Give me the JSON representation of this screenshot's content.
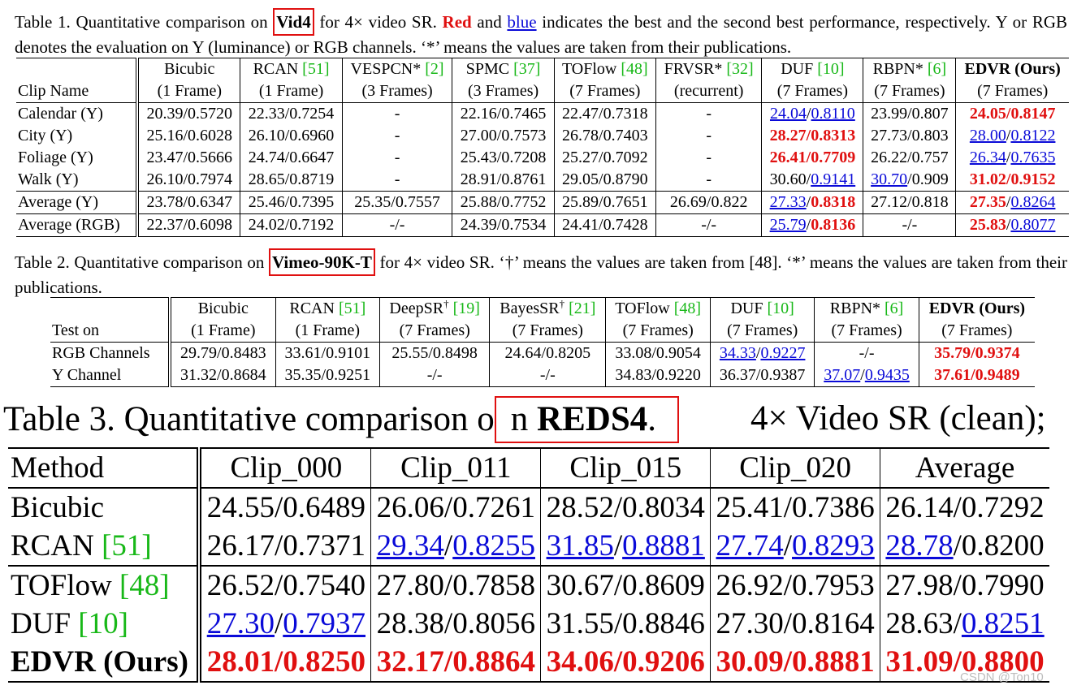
{
  "table1": {
    "caption": {
      "prefix": "Table 1. Quantitative comparison on ",
      "dataset": "Vid4",
      "mid1": " for 4× video SR. ",
      "red_word": "Red",
      "mid2": " and ",
      "blue_word": "blue",
      "rest": " indicates the best and the second best performance, respectively. Y or RGB denotes the evaluation on Y (luminance) or RGB channels. ‘*’ means the values are taken from their publications."
    },
    "header_row1": [
      "",
      "Bicubic",
      "RCAN [51]",
      "VESPCN* [2]",
      "SPMC [37]",
      "TOFlow [48]",
      "FRVSR* [32]",
      "DUF [10]",
      "RBPN* [6]",
      "EDVR (Ours)"
    ],
    "header_row2": [
      "Clip Name",
      "(1 Frame)",
      "(1 Frame)",
      "(3 Frames)",
      "(3 Frames)",
      "(7 Frames)",
      "(recurrent)",
      "(7 Frames)",
      "(7 Frames)",
      "(7 Frames)"
    ],
    "rows": [
      [
        "Calendar (Y)",
        "20.39/0.5720",
        "22.33/0.7254",
        "-",
        "22.16/0.7465",
        "22.47/0.7318",
        "-",
        "24.04/0.8110",
        "23.99/0.807",
        "24.05/0.8147"
      ],
      [
        "City (Y)",
        "25.16/0.6028",
        "26.10/0.6960",
        "-",
        "27.00/0.7573",
        "26.78/0.7403",
        "-",
        "28.27/0.8313",
        "27.73/0.803",
        "28.00/0.8122"
      ],
      [
        "Foliage (Y)",
        "23.47/0.5666",
        "24.74/0.6647",
        "-",
        "25.43/0.7208",
        "25.27/0.7092",
        "-",
        "26.41/0.7709",
        "26.22/0.757",
        "26.34/0.7635"
      ],
      [
        "Walk (Y)",
        "26.10/0.7974",
        "28.65/0.8719",
        "-",
        "28.91/0.8761",
        "29.05/0.8790",
        "-",
        "30.60/0.9141",
        "30.70/0.909",
        "31.02/0.9152"
      ],
      [
        "Average (Y)",
        "23.78/0.6347",
        "25.46/0.7395",
        "25.35/0.7557",
        "25.88/0.7752",
        "25.89/0.7651",
        "26.69/0.822",
        "27.33/0.8318",
        "27.12/0.818",
        "27.35/0.8264"
      ],
      [
        "Average (RGB)",
        "22.37/0.6098",
        "24.02/0.7192",
        "-/-",
        "24.39/0.7534",
        "24.41/0.7428",
        "-/-",
        "25.79/0.8136",
        "-/-",
        "25.83/0.8077"
      ]
    ]
  },
  "table2": {
    "caption": {
      "prefix": "Table 2. Quantitative comparison on ",
      "dataset": "Vimeo-90K-T",
      "rest": " for 4× video SR. ‘†’ means the values are taken from [48]. ‘*’ means the values are taken from their publications."
    },
    "header_row1": [
      "",
      "Bicubic",
      "RCAN [51]",
      "DeepSR† [19]",
      "BayesSR† [21]",
      "TOFlow [48]",
      "DUF [10]",
      "RBPN* [6]",
      "EDVR (Ours)"
    ],
    "header_row2": [
      "Test on",
      "(1 Frame)",
      "(1 Frame)",
      "(7 Frames)",
      "(7 Frames)",
      "(7 Frames)",
      "(7 Frames)",
      "(7 Frames)",
      "(7 Frames)"
    ],
    "rows": [
      [
        "RGB Channels",
        "29.79/0.8483",
        "33.61/0.9101",
        "25.55/0.8498",
        "24.64/0.8205",
        "33.08/0.9054",
        "34.33/0.9227",
        "-/-",
        "35.79/0.9374"
      ],
      [
        "Y Channel",
        "31.32/0.8684",
        "35.35/0.9251",
        "-/-",
        "-/-",
        "34.83/0.9220",
        "36.37/0.9387",
        "37.07/0.9435",
        "37.61/0.9489"
      ]
    ]
  },
  "table3": {
    "caption": {
      "prefix": "Table 3. Quantitative comparison o",
      "dataset_lead": "n ",
      "dataset": "REDS4",
      "dataset_tail": ".",
      "tail": "4× Video SR (clean);"
    },
    "header": [
      "Method",
      "Clip_000",
      "Clip_011",
      "Clip_015",
      "Clip_020",
      "Average"
    ],
    "rows": [
      [
        "Bicubic",
        "24.55/0.6489",
        "26.06/0.7261",
        "28.52/0.8034",
        "25.41/0.7386",
        "26.14/0.7292"
      ],
      [
        "RCAN [51]",
        "26.17/0.7371",
        "29.34/0.8255",
        "31.85/0.8881",
        "27.74/0.8293",
        "28.78/0.8200"
      ],
      [
        "TOFlow [48]",
        "26.52/0.7540",
        "27.80/0.7858",
        "30.67/0.8609",
        "26.92/0.7953",
        "27.98/0.7990"
      ],
      [
        "DUF [10]",
        "27.30/0.7937",
        "28.38/0.8056",
        "31.55/0.8846",
        "27.30/0.8164",
        "28.63/0.8251"
      ],
      [
        "EDVR (Ours)",
        "28.01/0.8250",
        "32.17/0.8864",
        "34.06/0.9206",
        "30.09/0.8881",
        "31.09/0.8800"
      ]
    ]
  },
  "styles": {
    "best_color": "#e01010",
    "second_color": "#0a0ad8",
    "citation_color": "#18b818",
    "best_cells": {
      "t1": [
        [
          0,
          9,
          "both"
        ],
        [
          1,
          7,
          "both"
        ],
        [
          2,
          7,
          "both"
        ],
        [
          3,
          9,
          "both"
        ],
        [
          4,
          7,
          "ssim"
        ],
        [
          4,
          9,
          "psnr"
        ],
        [
          5,
          7,
          "ssim"
        ],
        [
          5,
          9,
          "psnr"
        ]
      ],
      "t2": [
        [
          0,
          8,
          "both"
        ],
        [
          1,
          8,
          "both"
        ]
      ],
      "t3": [
        [
          4,
          1,
          "both"
        ],
        [
          4,
          2,
          "both"
        ],
        [
          4,
          3,
          "both"
        ],
        [
          4,
          4,
          "both"
        ],
        [
          4,
          5,
          "both"
        ]
      ]
    },
    "second_cells": {
      "t1": [
        [
          0,
          7,
          "both"
        ],
        [
          1,
          9,
          "both"
        ],
        [
          2,
          9,
          "both"
        ],
        [
          3,
          7,
          "ssim"
        ],
        [
          3,
          8,
          "psnr"
        ],
        [
          4,
          7,
          "psnr"
        ],
        [
          4,
          9,
          "ssim"
        ],
        [
          5,
          7,
          "psnr"
        ],
        [
          5,
          9,
          "ssim"
        ]
      ],
      "t2": [
        [
          0,
          6,
          "both"
        ],
        [
          1,
          7,
          "both"
        ]
      ],
      "t3": [
        [
          1,
          2,
          "both"
        ],
        [
          1,
          3,
          "both"
        ],
        [
          1,
          4,
          "both"
        ],
        [
          1,
          5,
          "psnr"
        ],
        [
          3,
          1,
          "both"
        ],
        [
          3,
          5,
          "ssim"
        ]
      ]
    }
  },
  "watermark": "CSDN @Ton10"
}
